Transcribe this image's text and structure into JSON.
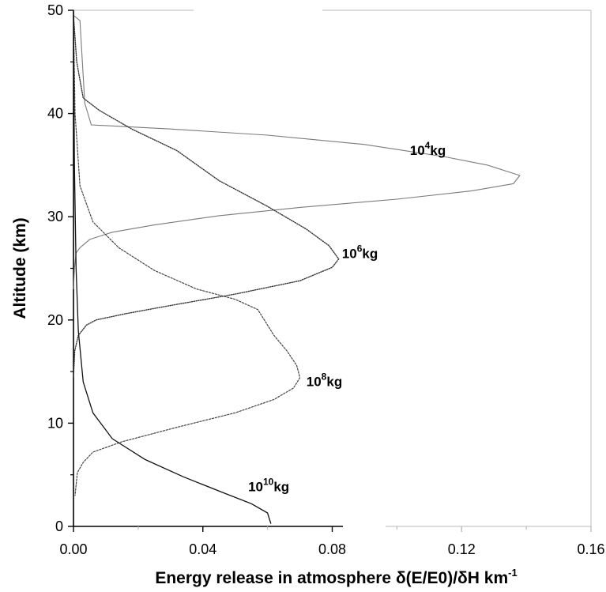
{
  "chart_data": {
    "type": "line",
    "title": "",
    "xlabel_main": "Energy release in atmosphere δ(E/E0)/δH km",
    "xlabel_sup": "-1",
    "ylabel": "Altitude (km)",
    "xlim": [
      0,
      0.16
    ],
    "ylim": [
      0,
      50
    ],
    "xticks": [
      0,
      0.04,
      0.08,
      0.12,
      0.16
    ],
    "xtick_labels": [
      "0.00",
      "0.04",
      "0.08",
      "0.12",
      "0.16"
    ],
    "yticks": [
      0,
      10,
      20,
      30,
      40,
      50
    ],
    "ytick_labels": [
      "0",
      "10",
      "20",
      "30",
      "40",
      "50"
    ],
    "grid": false,
    "series": [
      {
        "name": "10^4kg",
        "label_base": "10",
        "label_sup": "4",
        "label_unit": "kg",
        "label_at": [
          0.104,
          36.0
        ],
        "style": "thin",
        "points": [
          [
            0.0,
            49.5
          ],
          [
            0.002,
            49.0
          ],
          [
            0.0035,
            41.0
          ],
          [
            0.0055,
            38.9
          ],
          [
            0.03,
            38.5
          ],
          [
            0.06,
            37.9
          ],
          [
            0.09,
            37.0
          ],
          [
            0.115,
            35.8
          ],
          [
            0.128,
            35.0
          ],
          [
            0.138,
            34.0
          ],
          [
            0.136,
            33.2
          ],
          [
            0.123,
            32.5
          ],
          [
            0.1,
            31.7
          ],
          [
            0.07,
            30.9
          ],
          [
            0.045,
            30.1
          ],
          [
            0.025,
            29.2
          ],
          [
            0.012,
            28.5
          ],
          [
            0.005,
            27.8
          ],
          [
            0.002,
            27.0
          ],
          [
            0.0008,
            26.5
          ],
          [
            0.0003,
            25.0
          ],
          [
            0.0,
            23.0
          ]
        ]
      },
      {
        "name": "10^6kg",
        "label_base": "10",
        "label_sup": "6",
        "label_unit": "kg",
        "label_at": [
          0.083,
          26.0
        ],
        "style": "dotted",
        "points": [
          [
            0.0,
            49.5
          ],
          [
            0.001,
            45.0
          ],
          [
            0.003,
            41.5
          ],
          [
            0.008,
            40.3
          ],
          [
            0.018,
            38.5
          ],
          [
            0.032,
            36.4
          ],
          [
            0.045,
            33.5
          ],
          [
            0.06,
            31.0
          ],
          [
            0.072,
            28.8
          ],
          [
            0.079,
            27.2
          ],
          [
            0.082,
            25.9
          ],
          [
            0.08,
            25.1
          ],
          [
            0.07,
            23.8
          ],
          [
            0.05,
            22.5
          ],
          [
            0.03,
            21.4
          ],
          [
            0.016,
            20.6
          ],
          [
            0.007,
            20.0
          ],
          [
            0.004,
            19.5
          ],
          [
            0.0015,
            18.5
          ],
          [
            0.0004,
            17.0
          ],
          [
            0.0,
            14.5
          ]
        ]
      },
      {
        "name": "10^8kg",
        "label_base": "10",
        "label_sup": "8",
        "label_unit": "kg",
        "label_at": [
          0.072,
          13.6
        ],
        "style": "dashed-fine",
        "points": [
          [
            0.0,
            49.0
          ],
          [
            0.0005,
            40.0
          ],
          [
            0.002,
            33.0
          ],
          [
            0.006,
            29.5
          ],
          [
            0.014,
            27.0
          ],
          [
            0.025,
            24.8
          ],
          [
            0.038,
            23.0
          ],
          [
            0.05,
            22.0
          ],
          [
            0.057,
            21.0
          ],
          [
            0.062,
            18.5
          ],
          [
            0.066,
            17.0
          ],
          [
            0.069,
            15.6
          ],
          [
            0.07,
            14.4
          ],
          [
            0.068,
            13.4
          ],
          [
            0.062,
            12.3
          ],
          [
            0.05,
            11.0
          ],
          [
            0.032,
            9.6
          ],
          [
            0.015,
            8.2
          ],
          [
            0.006,
            7.2
          ],
          [
            0.003,
            6.2
          ],
          [
            0.0012,
            5.2
          ],
          [
            0.0005,
            3.0
          ]
        ]
      },
      {
        "name": "10^10kg",
        "label_base": "10",
        "label_sup": "10",
        "label_unit": "kg",
        "label_at": [
          0.054,
          3.4
        ],
        "style": "solid",
        "points": [
          [
            0.0,
            50.0
          ],
          [
            0.0003,
            35.0
          ],
          [
            0.0008,
            25.0
          ],
          [
            0.0015,
            19.0
          ],
          [
            0.003,
            14.0
          ],
          [
            0.006,
            11.0
          ],
          [
            0.012,
            8.5
          ],
          [
            0.022,
            6.5
          ],
          [
            0.034,
            4.8
          ],
          [
            0.046,
            3.3
          ],
          [
            0.055,
            2.2
          ],
          [
            0.06,
            1.3
          ],
          [
            0.061,
            0.3
          ]
        ]
      }
    ]
  }
}
